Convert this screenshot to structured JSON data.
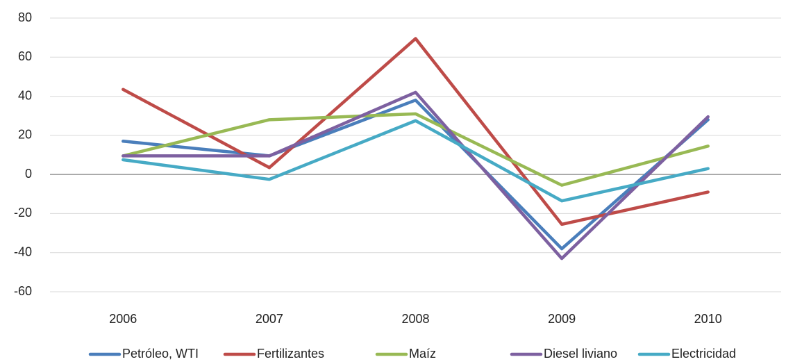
{
  "chart_data": {
    "type": "line",
    "categories": [
      "2006",
      "2007",
      "2008",
      "2009",
      "2010"
    ],
    "series": [
      {
        "name": "Petróleo, WTI",
        "color": "#4a7ebb",
        "values": [
          17,
          9.5,
          38,
          -38,
          28
        ]
      },
      {
        "name": "Fertilizantes",
        "color": "#be4b48",
        "values": [
          43.5,
          3.5,
          69.5,
          -25.5,
          -9
        ]
      },
      {
        "name": "Maíz",
        "color": "#98b954",
        "values": [
          9.5,
          28,
          31,
          -5.5,
          14.5
        ]
      },
      {
        "name": "Diesel liviano",
        "color": "#7d60a0",
        "values": [
          9.5,
          9.5,
          42,
          -43,
          29.5
        ]
      },
      {
        "name": "Electricidad",
        "color": "#46aac5",
        "values": [
          7.5,
          -2.5,
          27.5,
          -13.5,
          3
        ]
      }
    ],
    "ylim": [
      -60,
      80
    ],
    "yticks": [
      -60,
      -40,
      -20,
      0,
      20,
      40,
      60,
      80
    ],
    "grid": true,
    "legend": "bottom"
  }
}
